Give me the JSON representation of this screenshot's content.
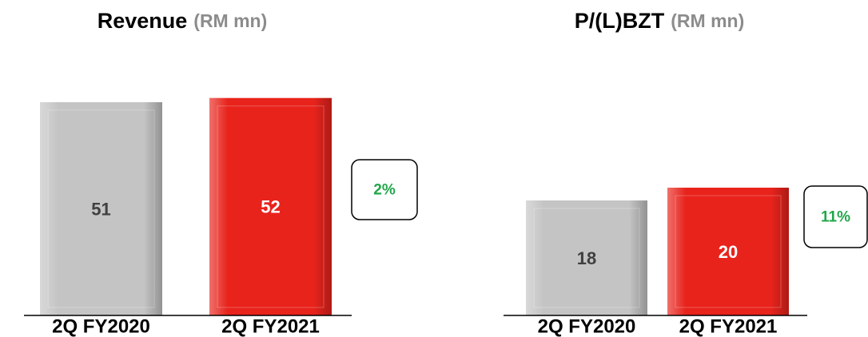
{
  "chart_data": [
    {
      "type": "bar",
      "title": "Revenue",
      "unit": "(RM mn)",
      "categories": [
        "2Q FY2020",
        "2Q FY2021"
      ],
      "values": [
        51,
        52
      ],
      "colors": [
        "#c4c4c4",
        "#e8231c"
      ],
      "label_colors": [
        "#404040",
        "#ffffff"
      ],
      "ylim": [
        0,
        55
      ],
      "annotation": "2%",
      "annotation_color": "#21a64a"
    },
    {
      "type": "bar",
      "title": "P/(L)BZT",
      "unit": "(RM mn)",
      "categories": [
        "2Q FY2020",
        "2Q FY2021"
      ],
      "values": [
        18,
        20
      ],
      "colors": [
        "#c4c4c4",
        "#e8231c"
      ],
      "label_colors": [
        "#404040",
        "#ffffff"
      ],
      "ylim": [
        0,
        36
      ],
      "annotation": "11%",
      "annotation_color": "#21a64a"
    }
  ]
}
